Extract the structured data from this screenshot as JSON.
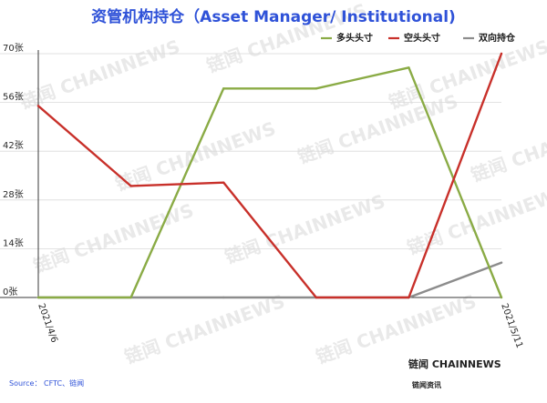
{
  "chart_data": {
    "type": "line",
    "title": "资管机构持仓（Asset Manager/ Institutional)",
    "x": [
      "2021/4/6",
      "",
      "",
      "",
      "",
      "2021/5/11"
    ],
    "x_tick_labels": [
      "2021/4/6",
      "2021/5/11"
    ],
    "ylim": [
      0,
      70
    ],
    "y_ticks": [
      0,
      14,
      28,
      42,
      56,
      70
    ],
    "y_tick_labels": [
      "0张",
      "14张",
      "28张",
      "42张",
      "56张",
      "70张"
    ],
    "grid": "horizontal",
    "legend_position": "top-right",
    "series": [
      {
        "name": "多头头寸",
        "color": "#8aab45",
        "values": [
          0,
          0,
          60,
          60,
          66,
          0
        ]
      },
      {
        "name": "空头头寸",
        "color": "#c8302a",
        "values": [
          55,
          32,
          33,
          0,
          0,
          70
        ]
      },
      {
        "name": "双向持仓",
        "color": "#8c8c8c",
        "values": [
          0,
          0,
          0,
          0,
          0,
          10
        ]
      }
    ],
    "source": "Source： CFTC、链闻",
    "brand": "链闻 CHAINNEWS",
    "brand_sub": "链闻资讯",
    "watermark": "链闻 CHAINNEWS"
  }
}
